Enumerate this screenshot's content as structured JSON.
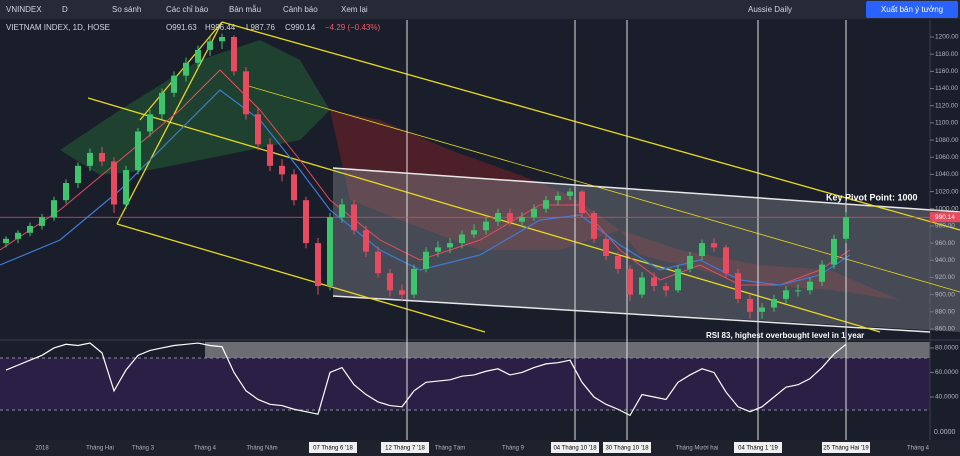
{
  "toolbar": {
    "symbol": "VNINDEX",
    "interval": "D",
    "compare": "So sánh",
    "indicators": "Các chỉ báo",
    "templates": "Bản mẫu",
    "alert": "Cảnh báo",
    "replay": "Xem lại",
    "layout": "Aussie Daily",
    "publish": "Xuất bản ý tưởng"
  },
  "legend": {
    "title": "VIETNAM INDEX, 1D, HOSE",
    "open": "O991.63",
    "high": "H996.44",
    "low": "L987.76",
    "close": "C990.14",
    "change": "−4.29 (−0.43%)"
  },
  "price_axis": {
    "ylim": [
      849.5,
      1219.8
    ],
    "ticks": [
      {
        "value": 1200,
        "label": "1200.00"
      },
      {
        "value": 1180,
        "label": "1180.00"
      },
      {
        "value": 1160,
        "label": "1160.00"
      },
      {
        "value": 1140,
        "label": "1140.00"
      },
      {
        "value": 1120,
        "label": "1120.00"
      },
      {
        "value": 1100,
        "label": "1100.00"
      },
      {
        "value": 1080,
        "label": "1080.00"
      },
      {
        "value": 1060,
        "label": "1060.00"
      },
      {
        "value": 1040,
        "label": "1040.00"
      },
      {
        "value": 1020,
        "label": "1020.00"
      },
      {
        "value": 1000,
        "label": "1000.00"
      },
      {
        "value": 980,
        "label": "980.00"
      },
      {
        "value": 960,
        "label": "960.00"
      },
      {
        "value": 940,
        "label": "940.00"
      },
      {
        "value": 920,
        "label": "920.00"
      },
      {
        "value": 900,
        "label": "900.00"
      },
      {
        "value": 880,
        "label": "880.00"
      },
      {
        "value": 860,
        "label": "860.00"
      }
    ],
    "last_price": {
      "value": 990.14,
      "label": "990.14"
    }
  },
  "candles": [
    [
      960,
      968,
      955,
      965
    ],
    [
      965,
      975,
      960,
      972
    ],
    [
      972,
      984,
      968,
      980
    ],
    [
      980,
      994,
      976,
      990
    ],
    [
      990,
      1014,
      986,
      1010
    ],
    [
      1010,
      1034,
      1006,
      1030
    ],
    [
      1030,
      1054,
      1024,
      1050
    ],
    [
      1050,
      1070,
      1044,
      1065
    ],
    [
      1065,
      1072,
      1050,
      1055
    ],
    [
      1055,
      1060,
      995,
      1005
    ],
    [
      1005,
      1050,
      1000,
      1045
    ],
    [
      1045,
      1094,
      1040,
      1090
    ],
    [
      1090,
      1115,
      1084,
      1110
    ],
    [
      1110,
      1140,
      1104,
      1135
    ],
    [
      1135,
      1160,
      1130,
      1155
    ],
    [
      1155,
      1176,
      1148,
      1170
    ],
    [
      1170,
      1190,
      1164,
      1185
    ],
    [
      1185,
      1200,
      1178,
      1195
    ],
    [
      1195,
      1204,
      1186,
      1200
    ],
    [
      1200,
      1202,
      1155,
      1160
    ],
    [
      1160,
      1165,
      1104,
      1110
    ],
    [
      1110,
      1118,
      1068,
      1075
    ],
    [
      1075,
      1082,
      1044,
      1050
    ],
    [
      1050,
      1058,
      1032,
      1040
    ],
    [
      1040,
      1046,
      1004,
      1010
    ],
    [
      1010,
      1014,
      954,
      960
    ],
    [
      960,
      966,
      900,
      910
    ],
    [
      910,
      995,
      905,
      990
    ],
    [
      990,
      1012,
      984,
      1005
    ],
    [
      1005,
      1010,
      970,
      975
    ],
    [
      975,
      980,
      944,
      950
    ],
    [
      950,
      956,
      920,
      925
    ],
    [
      925,
      930,
      898,
      905
    ],
    [
      905,
      912,
      892,
      900
    ],
    [
      900,
      935,
      896,
      930
    ],
    [
      930,
      955,
      926,
      950
    ],
    [
      950,
      962,
      944,
      955
    ],
    [
      955,
      966,
      948,
      960
    ],
    [
      960,
      975,
      954,
      970
    ],
    [
      970,
      982,
      966,
      975
    ],
    [
      975,
      990,
      970,
      985
    ],
    [
      985,
      1000,
      980,
      995
    ],
    [
      995,
      1000,
      980,
      985
    ],
    [
      985,
      996,
      978,
      990
    ],
    [
      990,
      1005,
      986,
      1000
    ],
    [
      1000,
      1015,
      995,
      1010
    ],
    [
      1010,
      1020,
      1004,
      1015
    ],
    [
      1015,
      1024,
      1010,
      1020
    ],
    [
      1020,
      1022,
      990,
      995
    ],
    [
      995,
      998,
      960,
      965
    ],
    [
      965,
      970,
      940,
      945
    ],
    [
      945,
      950,
      924,
      930
    ],
    [
      930,
      934,
      892,
      900
    ],
    [
      900,
      926,
      896,
      920
    ],
    [
      920,
      926,
      904,
      910
    ],
    [
      910,
      914,
      898,
      905
    ],
    [
      905,
      934,
      902,
      930
    ],
    [
      930,
      950,
      926,
      945
    ],
    [
      945,
      964,
      940,
      960
    ],
    [
      960,
      966,
      950,
      955
    ],
    [
      955,
      958,
      920,
      925
    ],
    [
      925,
      930,
      890,
      895
    ],
    [
      895,
      900,
      872,
      880
    ],
    [
      880,
      890,
      872,
      885
    ],
    [
      885,
      900,
      880,
      895
    ],
    [
      895,
      910,
      890,
      905
    ],
    [
      905,
      912,
      898,
      905
    ],
    [
      905,
      920,
      900,
      915
    ],
    [
      915,
      940,
      910,
      935
    ],
    [
      935,
      970,
      930,
      965
    ],
    [
      965,
      996,
      960,
      990
    ]
  ],
  "rsi_pane": {
    "ylim": [
      14.7,
      86.5
    ],
    "ticks": [
      {
        "value": 80,
        "label": "80.0000"
      },
      {
        "value": 60,
        "label": "60.0000"
      },
      {
        "value": 40,
        "label": "40.0000"
      }
    ],
    "floor_label": "0.0000",
    "values": [
      62,
      66,
      70,
      74,
      80,
      83,
      82,
      84,
      76,
      45,
      62,
      74,
      78,
      80,
      82,
      83,
      84,
      82,
      81,
      60,
      45,
      38,
      34,
      33,
      30,
      28,
      26,
      60,
      64,
      50,
      42,
      36,
      33,
      32,
      45,
      52,
      53,
      54,
      57,
      58,
      61,
      63,
      58,
      60,
      64,
      67,
      68,
      70,
      52,
      40,
      34,
      30,
      25,
      42,
      40,
      38,
      52,
      58,
      63,
      60,
      44,
      32,
      28,
      32,
      40,
      48,
      50,
      55,
      64,
      75,
      83
    ]
  },
  "annotations": {
    "pivot": "Key Pivot Point: 1000",
    "rsi": "RSI 83, highest overbought level in 1 year"
  },
  "time_axis": [
    {
      "text": "2018"
    },
    {
      "text": "Tháng Hai"
    },
    {
      "text": "Tháng 3"
    },
    {
      "text": "Tháng 4"
    },
    {
      "text": "Tháng Năm"
    },
    {
      "text": "07 Tháng 6 '18",
      "boxed": true
    },
    {
      "text": "12 Tháng 7 '18",
      "boxed": true
    },
    {
      "text": "Tháng Tám"
    },
    {
      "text": "Tháng 9"
    },
    {
      "text": "04 Tháng 10 '18",
      "boxed": true
    },
    {
      "text": "30 Tháng 10 '18",
      "boxed": true
    },
    {
      "text": "Tháng Mười hai"
    },
    {
      "text": "04 Tháng 1 '19",
      "boxed": true
    },
    {
      "text": "25 Tháng Hai '19",
      "boxed": true
    },
    {
      "text": "Tháng 4"
    }
  ]
}
